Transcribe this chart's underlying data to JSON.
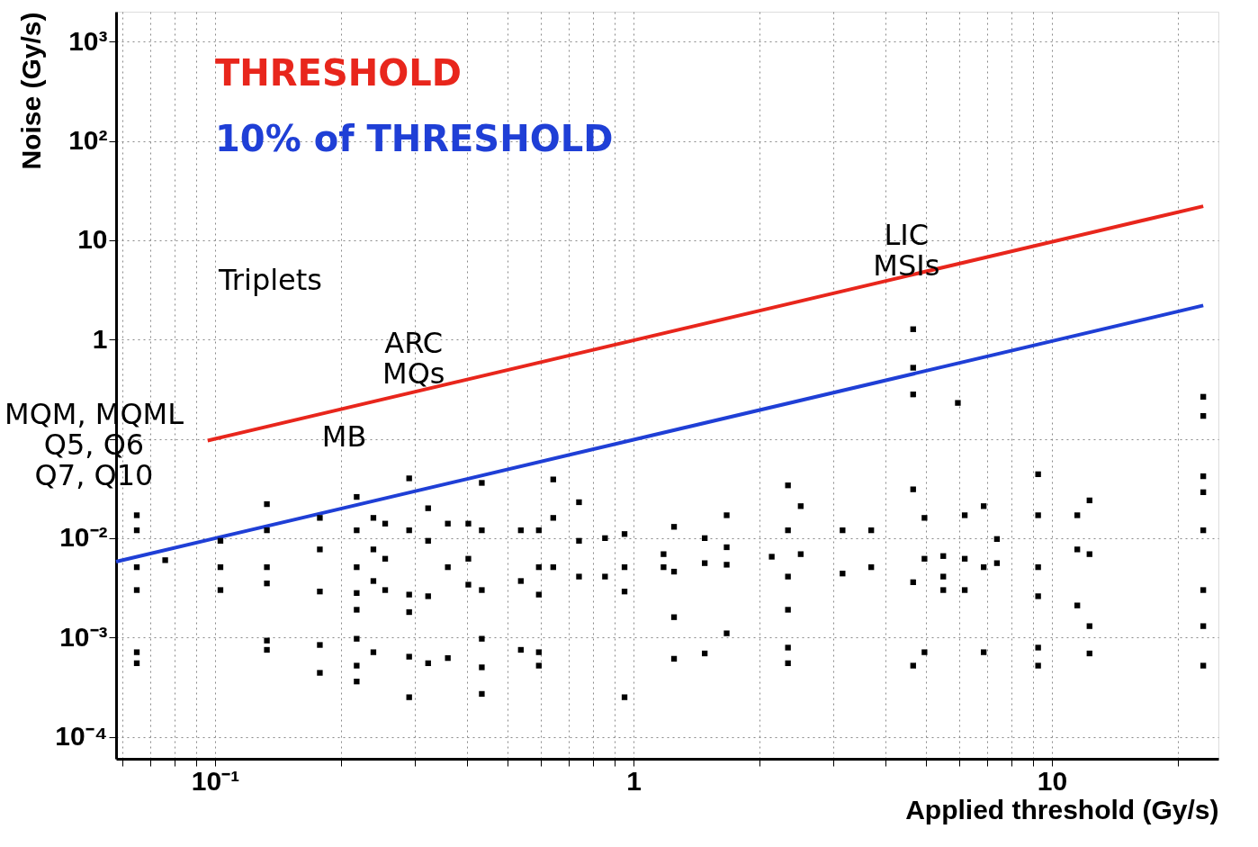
{
  "chart_data": {
    "type": "scatter",
    "xlabel": "Applied threshold (Gy/s)",
    "ylabel": "Noise (Gy/s)",
    "log": "xy",
    "grid": true,
    "legend": "top left",
    "xlim": [
      0.058,
      25
    ],
    "ylim": [
      6e-05,
      2000
    ],
    "xticks": [
      {
        "value": 0.06,
        "label": null
      },
      {
        "value": 0.07,
        "label": null
      },
      {
        "value": 0.08,
        "label": null
      },
      {
        "value": 0.09,
        "label": null
      },
      {
        "value": 0.1,
        "label": "10⁻¹"
      },
      {
        "value": 0.2,
        "label": null
      },
      {
        "value": 0.3,
        "label": null
      },
      {
        "value": 0.4,
        "label": null
      },
      {
        "value": 0.5,
        "label": null
      },
      {
        "value": 0.6,
        "label": null
      },
      {
        "value": 0.7,
        "label": null
      },
      {
        "value": 0.8,
        "label": null
      },
      {
        "value": 0.9,
        "label": null
      },
      1,
      {
        "value": 2,
        "label": null
      },
      {
        "value": 3,
        "label": null
      },
      {
        "value": 4,
        "label": null
      },
      {
        "value": 5,
        "label": null
      },
      {
        "value": 6,
        "label": null
      },
      {
        "value": 7,
        "label": null
      },
      {
        "value": 8,
        "label": null
      },
      {
        "value": 9,
        "label": null
      },
      10,
      {
        "value": 20,
        "label": null
      }
    ],
    "yticks": [
      {
        "value": 0.0001,
        "label": "10⁻⁴"
      },
      {
        "value": 0.001,
        "label": "10⁻³"
      },
      {
        "value": 0.01,
        "label": "10⁻²"
      },
      {
        "value": 0.1,
        "label": null
      },
      1,
      10,
      {
        "value": 100,
        "label": "10²"
      },
      {
        "value": 1000,
        "label": "10³"
      }
    ],
    "series": [
      {
        "name": "THRESHOLD",
        "type": "line",
        "line_style": "solid",
        "color": "#e8261c",
        "x": [
          0.096,
          23
        ],
        "values": [
          0.096,
          22
        ]
      },
      {
        "name": "10% of THRESHOLD",
        "type": "line",
        "line_style": "solid",
        "color": "#1f3fd6",
        "x": [
          0.058,
          23
        ],
        "values": [
          0.0058,
          2.2
        ]
      },
      {
        "marker": "square",
        "color": "#000000",
        "x": [
          0.065,
          0.065,
          0.065,
          0.065,
          0.065,
          0.065,
          0.076,
          0.103,
          0.103,
          0.103,
          0.133,
          0.133,
          0.133,
          0.133,
          0.133,
          0.133,
          0.178,
          0.178,
          0.178,
          0.178,
          0.178,
          0.218,
          0.218,
          0.218,
          0.218,
          0.218,
          0.218,
          0.218,
          0.218,
          0.239,
          0.239,
          0.239,
          0.239,
          0.255,
          0.255,
          0.255,
          0.291,
          0.291,
          0.291,
          0.291,
          0.291,
          0.291,
          0.323,
          0.323,
          0.323,
          0.323,
          0.36,
          0.36,
          0.36,
          0.403,
          0.403,
          0.403,
          0.434,
          0.434,
          0.434,
          0.434,
          0.434,
          0.434,
          0.538,
          0.538,
          0.538,
          0.594,
          0.594,
          0.594,
          0.594,
          0.594,
          0.643,
          0.643,
          0.643,
          0.741,
          0.741,
          0.741,
          0.855,
          0.855,
          0.952,
          0.952,
          0.952,
          0.952,
          1.18,
          1.18,
          1.25,
          1.25,
          1.25,
          1.25,
          1.48,
          1.48,
          1.48,
          1.67,
          1.67,
          1.67,
          1.67,
          2.14,
          2.34,
          2.34,
          2.34,
          2.34,
          2.34,
          2.34,
          2.51,
          2.51,
          3.16,
          3.16,
          3.7,
          3.7,
          4.66,
          4.66,
          4.66,
          4.66,
          4.66,
          4.66,
          4.96,
          4.96,
          4.96,
          5.5,
          5.5,
          5.5,
          5.96,
          6.19,
          6.19,
          6.19,
          6.87,
          6.87,
          6.87,
          7.39,
          7.39,
          9.27,
          9.27,
          9.27,
          9.27,
          9.27,
          9.27,
          11.5,
          11.5,
          11.5,
          12.3,
          12.3,
          12.3,
          12.3,
          23,
          23,
          23,
          23,
          23,
          23,
          23,
          23
        ],
        "values": [
          0.017,
          0.012,
          0.0051,
          0.003,
          0.00071,
          0.00055,
          0.006,
          0.0094,
          0.0051,
          0.003,
          0.022,
          0.012,
          0.0051,
          0.0035,
          0.00093,
          0.00075,
          0.016,
          0.0077,
          0.0029,
          0.00084,
          0.00044,
          0.026,
          0.012,
          0.0051,
          0.0028,
          0.0019,
          0.00097,
          0.00052,
          0.00036,
          0.016,
          0.0077,
          0.0037,
          0.00071,
          0.014,
          0.0062,
          0.003,
          0.04,
          0.012,
          0.0027,
          0.0018,
          0.00064,
          0.00025,
          0.02,
          0.0094,
          0.0026,
          0.00055,
          0.014,
          0.0051,
          0.00062,
          0.014,
          0.0062,
          0.0034,
          0.036,
          0.012,
          0.003,
          0.00097,
          0.0005,
          0.00027,
          0.012,
          0.0037,
          0.00075,
          0.012,
          0.0051,
          0.0027,
          0.00071,
          0.00052,
          0.039,
          0.016,
          0.0051,
          0.023,
          0.0094,
          0.0041,
          0.01,
          0.0041,
          0.011,
          0.0051,
          0.0029,
          0.00025,
          0.0069,
          0.0051,
          0.013,
          0.0046,
          0.0016,
          0.00061,
          0.01,
          0.0056,
          0.00069,
          0.017,
          0.0081,
          0.0054,
          0.0011,
          0.0065,
          0.034,
          0.012,
          0.0041,
          0.0019,
          0.00079,
          0.00055,
          0.021,
          0.0069,
          0.012,
          0.0044,
          0.012,
          0.0051,
          1.27,
          0.52,
          0.28,
          0.031,
          0.0036,
          0.00052,
          0.016,
          0.0062,
          0.00071,
          0.0066,
          0.0041,
          0.003,
          0.23,
          0.017,
          0.0062,
          0.003,
          0.021,
          0.0051,
          0.00071,
          0.0098,
          0.0056,
          0.044,
          0.017,
          0.0051,
          0.0026,
          0.00079,
          0.00052,
          0.017,
          0.0077,
          0.0021,
          0.024,
          0.0069,
          0.0013,
          0.00069,
          0.265,
          0.17,
          0.042,
          0.029,
          0.012,
          0.003,
          0.0013,
          0.00052
        ]
      }
    ],
    "annotations": [
      "Triplets",
      "ARC\nMQs",
      "MB",
      "LIC\nMSIs",
      "MQM, MQML\nQ5, Q6\nQ7, Q10"
    ]
  }
}
